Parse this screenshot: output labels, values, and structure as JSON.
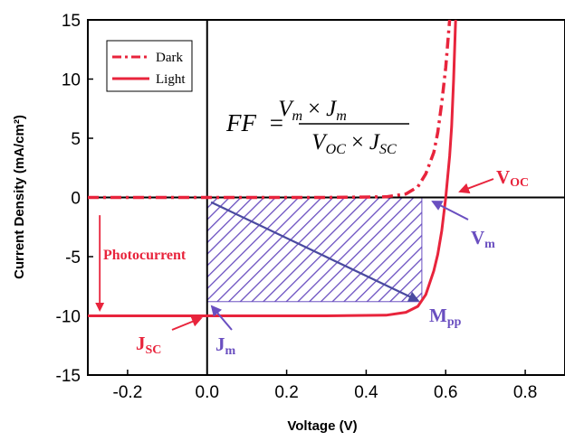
{
  "chart_data": {
    "type": "line",
    "xlabel": "Voltage (V)",
    "ylabel": "Current Density (mA/cm²)",
    "xlim": [
      -0.3,
      0.9
    ],
    "ylim": [
      -15,
      15
    ],
    "x_ticks": [
      -0.2,
      0.0,
      0.2,
      0.4,
      0.6,
      0.8
    ],
    "x_tick_labels": [
      "-0.2",
      "0.0",
      "0.2",
      "0.4",
      "0.6",
      "0.8"
    ],
    "y_ticks": [
      -15,
      -10,
      -5,
      0,
      5,
      10,
      15
    ],
    "y_tick_labels": [
      "-15",
      "-10",
      "-5",
      "0",
      "5",
      "10",
      "15"
    ],
    "grid": false,
    "legend_position": "top-left",
    "series": [
      {
        "name": "Dark",
        "style": "dash-dot",
        "color": "#e8243c",
        "points": [
          [
            -0.3,
            0
          ],
          [
            0.3,
            0
          ],
          [
            0.45,
            0.05
          ],
          [
            0.5,
            0.3
          ],
          [
            0.53,
            0.9
          ],
          [
            0.55,
            2
          ],
          [
            0.57,
            3.8
          ],
          [
            0.58,
            5.5
          ],
          [
            0.59,
            8
          ],
          [
            0.6,
            11
          ],
          [
            0.61,
            15
          ]
        ]
      },
      {
        "name": "Light",
        "style": "solid",
        "color": "#e8243c",
        "points": [
          [
            -0.3,
            -10
          ],
          [
            0.3,
            -10
          ],
          [
            0.45,
            -9.95
          ],
          [
            0.5,
            -9.7
          ],
          [
            0.53,
            -9.2
          ],
          [
            0.55,
            -8.2
          ],
          [
            0.57,
            -6.2
          ],
          [
            0.58,
            -4.8
          ],
          [
            0.59,
            -2.8
          ],
          [
            0.6,
            0
          ],
          [
            0.61,
            3.5
          ],
          [
            0.615,
            6
          ],
          [
            0.62,
            10
          ],
          [
            0.625,
            15
          ]
        ]
      }
    ],
    "fill_factor_rectangle": {
      "x": [
        0,
        0.54
      ],
      "y": [
        -8.8,
        0
      ],
      "pattern": "hatched",
      "color": "#6a4fc0"
    },
    "arrows": [
      {
        "label": "photocurrent-arrow",
        "from": [
          -0.27,
          -1.5
        ],
        "to": [
          -0.27,
          -9.5
        ],
        "color": "#e8243c"
      },
      {
        "label": "diagonal-arrow",
        "from": [
          0.01,
          -0.4
        ],
        "to": [
          0.53,
          -8.7
        ],
        "color": "#4a4aa0"
      }
    ],
    "annotations": {
      "formula": {
        "lhs": "FF",
        "num_a": "V",
        "num_a_sub": "m",
        "num_b": "J",
        "num_b_sub": "m",
        "den_a": "V",
        "den_a_sub": "OC",
        "den_b": "J",
        "den_b_sub": "SC",
        "times": "×",
        "equals": "="
      },
      "photocurrent": "Photocurrent",
      "voc": {
        "main": "V",
        "sub": "OC"
      },
      "vm": {
        "main": "V",
        "sub": "m"
      },
      "mpp": {
        "main": "M",
        "sub": "pp"
      },
      "jsc": {
        "main": "J",
        "sub": "SC"
      },
      "jm": {
        "main": "J",
        "sub": "m"
      }
    },
    "colors": {
      "red": "#e8243c",
      "purple": "#6a4fc0",
      "axis": "#000000"
    }
  }
}
